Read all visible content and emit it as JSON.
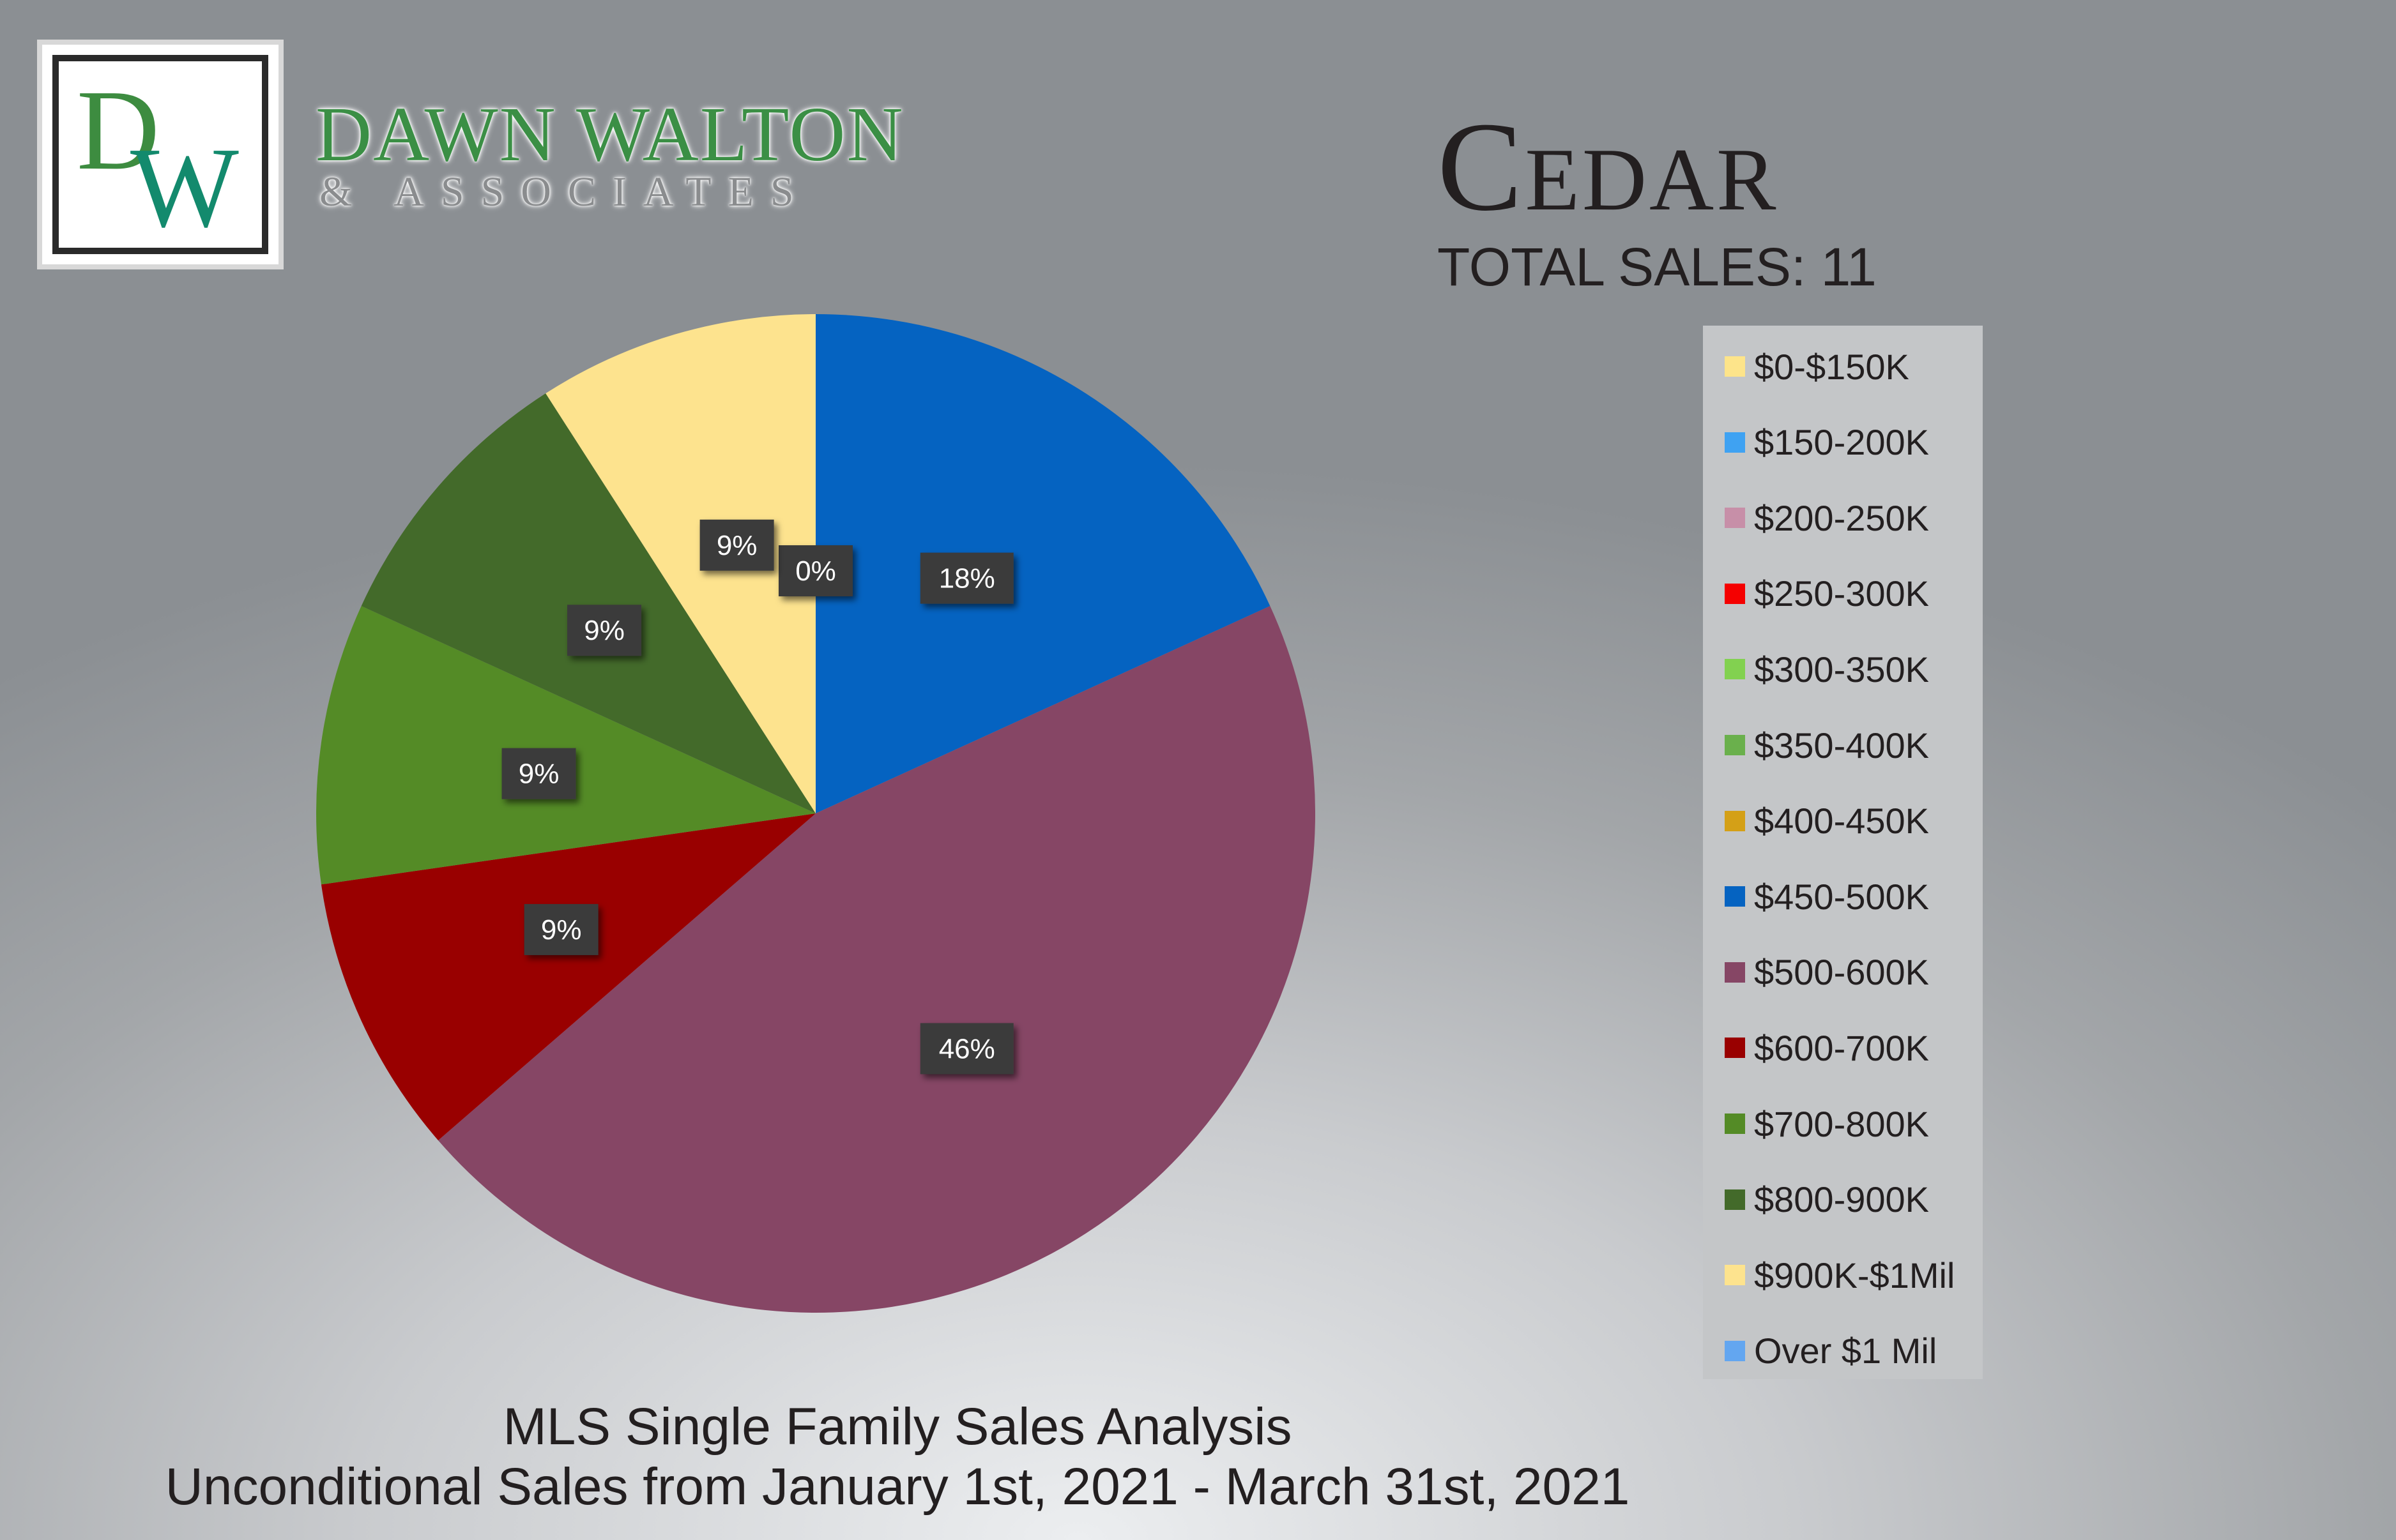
{
  "brand": {
    "logo_letters": "DW",
    "name": "DAWN WALTON",
    "subtitle": "& ASSOCIATES",
    "colors": {
      "green": "#3b8f45",
      "teal": "#138a6d"
    }
  },
  "header": {
    "city": "Cedar",
    "total_sales": "TOTAL SALES: 11"
  },
  "footer": {
    "line1": "MLS Single Family Sales Analysis",
    "line2": "Unconditional Sales from January 1st, 2021 - March 31st, 2021"
  },
  "chart_data": {
    "type": "pie",
    "title": "",
    "legend_position": "right",
    "categories": [
      "$0-$150K",
      "$150-200K",
      "$200-250K",
      "$250-300K",
      "$300-350K",
      "$350-400K",
      "$400-450K",
      "$450-500K",
      "$500-600K",
      "$600-700K",
      "$700-800K",
      "$800-900K",
      "$900K-$1Mil",
      "Over $1 Mil"
    ],
    "colors": [
      "#fde48a",
      "#3fa2f2",
      "#c78fa8",
      "#f50000",
      "#82d150",
      "#6ab04c",
      "#d4a017",
      "#0563c1",
      "#864665",
      "#990000",
      "#548b26",
      "#436a2a",
      "#fde38e",
      "#63a6f0"
    ],
    "values": [
      0,
      0,
      0,
      0,
      0,
      0,
      0,
      2,
      5,
      1,
      1,
      1,
      1,
      0
    ],
    "percent_labels": [
      "0%",
      "",
      "",
      "",
      "",
      "",
      "",
      "18%",
      "46%",
      "9%",
      "9%",
      "9%",
      "9%",
      ""
    ]
  }
}
